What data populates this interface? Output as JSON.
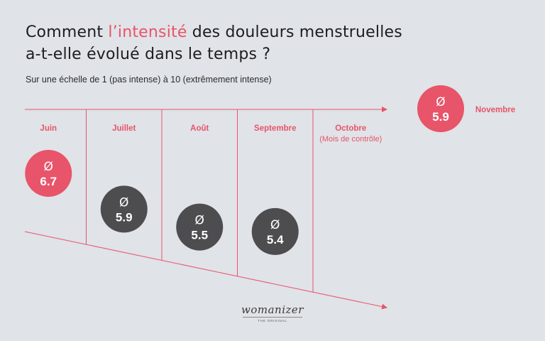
{
  "title": {
    "prefix": "Comment ",
    "highlight": "l’intensité",
    "line1_rest": " des douleurs menstruelles",
    "line2": "a-t-elle évolué dans le temps ?"
  },
  "subtitle": "Sur une échelle de 1 (pas intense) à 10 (extrêmement intense)",
  "colors": {
    "accent": "#e8546a",
    "dark": "#4d4d4f",
    "background": "#e0e3e7"
  },
  "logo": {
    "text": "womanizer",
    "subtext": "THE ORIGINAL"
  },
  "chart_data": {
    "type": "bubble-timeline",
    "symbol": "Ø",
    "scale": [
      1,
      10
    ],
    "months": [
      {
        "label": "Juin",
        "note": "",
        "value": 6.7,
        "highlight": true
      },
      {
        "label": "Juillet",
        "note": "",
        "value": 5.9,
        "highlight": false
      },
      {
        "label": "Août",
        "note": "",
        "value": 5.5,
        "highlight": false
      },
      {
        "label": "Septembre",
        "note": "",
        "value": 5.4,
        "highlight": false
      },
      {
        "label": "Octobre",
        "note": "(Mois de contrôle)",
        "value": null,
        "highlight": false
      },
      {
        "label": "Novembre",
        "note": "",
        "value": 5.9,
        "highlight": true
      }
    ]
  }
}
